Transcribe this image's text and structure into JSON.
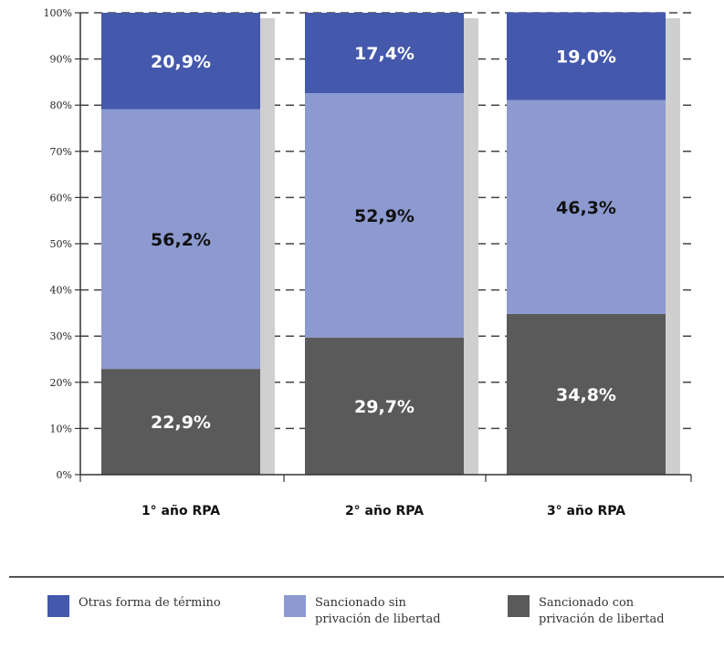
{
  "chart_data": {
    "type": "bar",
    "stacked": true,
    "categories": [
      "1° año RPA",
      "2° año RPA",
      "3° año RPA"
    ],
    "series": [
      {
        "name": "Sancionado con privación de libertad",
        "values": [
          22.9,
          29.7,
          34.8
        ],
        "labels": [
          "22,9%",
          "29,7%",
          "34,8%"
        ],
        "color": "#5a5a5a",
        "label_color": "#ffffff"
      },
      {
        "name": "Sancionado sin privación de libertad",
        "values": [
          56.2,
          52.9,
          46.3
        ],
        "labels": [
          "56,2%",
          "52,9%",
          "46,3%"
        ],
        "color": "#8c9ad0",
        "label_color": "#111111"
      },
      {
        "name": "Otras forma de término",
        "values": [
          20.9,
          17.4,
          19.0
        ],
        "labels": [
          "20,9%",
          "17,4%",
          "19,0%"
        ],
        "color": "#4458ac",
        "label_color": "#ffffff"
      }
    ],
    "ylim": [
      0,
      100
    ],
    "yticks": [
      "0%",
      "10%",
      "20%",
      "30%",
      "40%",
      "50%",
      "60%",
      "70%",
      "80%",
      "90%",
      "100%"
    ],
    "grid": "dashed-horizontal",
    "legend_placement": "bottom"
  },
  "legend": {
    "items": [
      {
        "label": "Otras forma de término",
        "color": "#4458ac"
      },
      {
        "label": "Sancionado sin\nprivación de libertad",
        "color": "#8c9ad0"
      },
      {
        "label": "Sancionado con\nprivación de libertad",
        "color": "#5a5a5a"
      }
    ]
  }
}
